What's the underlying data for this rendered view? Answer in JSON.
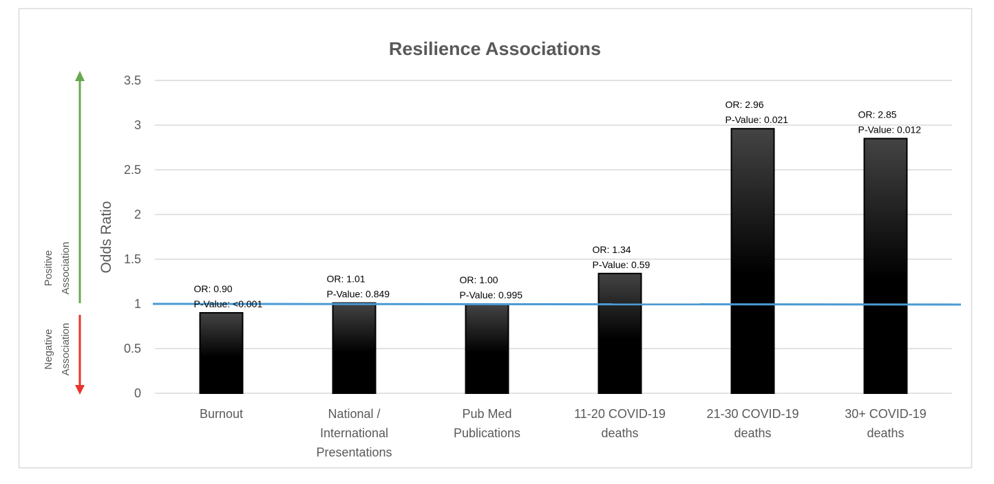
{
  "chart_data": {
    "type": "bar",
    "title": "Resilience Associations",
    "xlabel": "",
    "ylabel": "Odds Ratio",
    "ylim": [
      0,
      3.5
    ],
    "yticks": [
      "0",
      "0.5",
      "1",
      "1.5",
      "2",
      "2.5",
      "3",
      "3.5"
    ],
    "grid": true,
    "categories": [
      [
        "Burnout"
      ],
      [
        "National /",
        "International",
        "Presentations"
      ],
      [
        "Pub Med",
        "Publications"
      ],
      [
        "11-20 COVID-19",
        "deaths"
      ],
      [
        "21-30 COVID-19",
        "deaths"
      ],
      [
        "30+ COVID-19",
        "deaths"
      ]
    ],
    "values": [
      0.9,
      1.01,
      1.0,
      1.34,
      2.96,
      2.85
    ],
    "data_labels": [
      [
        "OR: 0.90",
        "P-Value: <0.001"
      ],
      [
        "OR: 1.01",
        "P-Value: 0.849"
      ],
      [
        "OR: 1.00",
        "P-Value: 0.995"
      ],
      [
        "OR: 1.34",
        "P-Value: 0.59"
      ],
      [
        "OR: 2.96",
        "P-Value: 0.021"
      ],
      [
        "OR: 2.85",
        "P-Value: 0.012"
      ]
    ],
    "reference_line": {
      "value": 1,
      "color": "#4a9ad4"
    },
    "annotations": {
      "positive": [
        "Positive",
        "Association"
      ],
      "negative": [
        "Negative",
        "Association"
      ]
    },
    "colors": {
      "bar": "#000000",
      "positive_arrow": "#6aa84f",
      "negative_arrow": "#e8352b",
      "grid": "#d9d9d9"
    }
  }
}
